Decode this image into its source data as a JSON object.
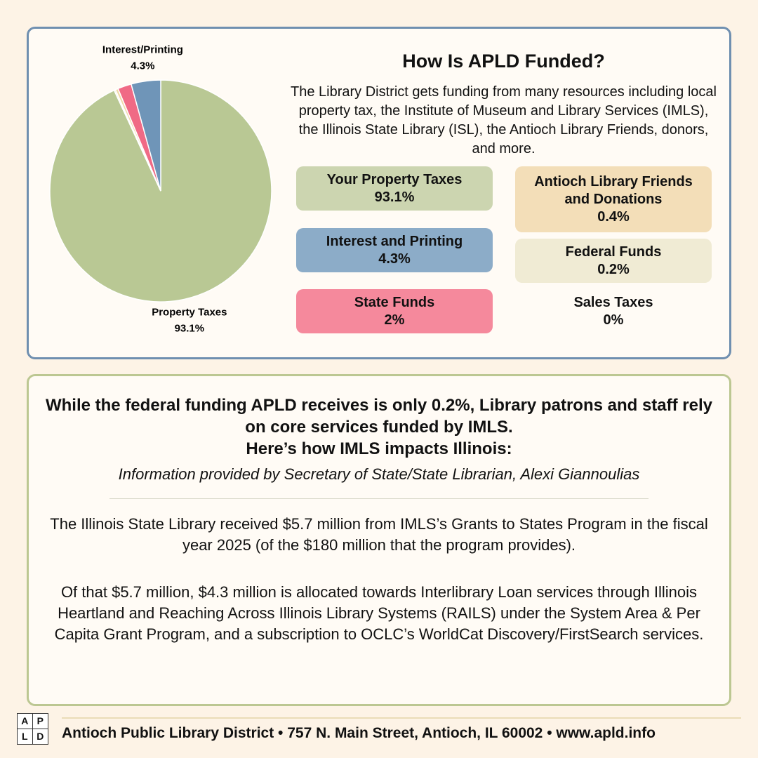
{
  "chart_data": {
    "type": "pie",
    "categories": [
      "Property Taxes",
      null,
      null,
      null,
      null,
      "Interest/Printing"
    ],
    "values": [
      93.1,
      0,
      0.2,
      0.4,
      2,
      4.3
    ],
    "value_labels": [
      "93.1%",
      null,
      null,
      null,
      null,
      "4.3%"
    ],
    "colors": [
      "#b9c894",
      "#e8e1c8",
      "#f3efd5",
      "#f0d9a8",
      "#f06a85",
      "#6f95b8"
    ]
  },
  "header": {
    "title": "How Is APLD Funded?",
    "description": "The Library District gets funding from many resources including local property tax, the Institute of Museum and Library Services (IMLS), the Illinois State Library (ISL), the Antioch Library Friends, donors, and more."
  },
  "cards": [
    {
      "title": "Your Property Taxes",
      "value": "93.1%"
    },
    {
      "title": "Interest and Printing",
      "value": "4.3%"
    },
    {
      "title": "State Funds",
      "value": "2%"
    },
    {
      "title": "Antioch Library Friends and Donations",
      "value": "0.4%"
    },
    {
      "title": "Federal Funds",
      "value": "0.2%"
    },
    {
      "title": "Sales Taxes",
      "value": "0%"
    }
  ],
  "info": {
    "heading": [
      "While the federal funding APLD receives is only 0.2%, Library patrons and staff rely on core services funded by IMLS.",
      "Here’s how IMLS impacts Illinois:"
    ],
    "source": "Information provided by Secretary of State/State Librarian, Alexi Giannoulias",
    "paragraphs": [
      "The Illinois State Library received $5.7 million from IMLS’s Grants to States Program in the fiscal year 2025 (of the $180 million that the program provides).",
      "Of that $5.7 million, $4.3 million is allocated towards Interlibrary Loan services through Illinois Heartland and Reaching Across Illinois Library Systems (RAILS) under the System Area & Per Capita Grant Program, and a subscription to OCLC’s WorldCat Discovery/FirstSearch services."
    ]
  },
  "footer": {
    "logo": [
      "A",
      "P",
      "L",
      "D"
    ],
    "text": "Antioch Public Library District • 757 N. Main Street, Antioch, IL 60002 • www.apld.info"
  }
}
